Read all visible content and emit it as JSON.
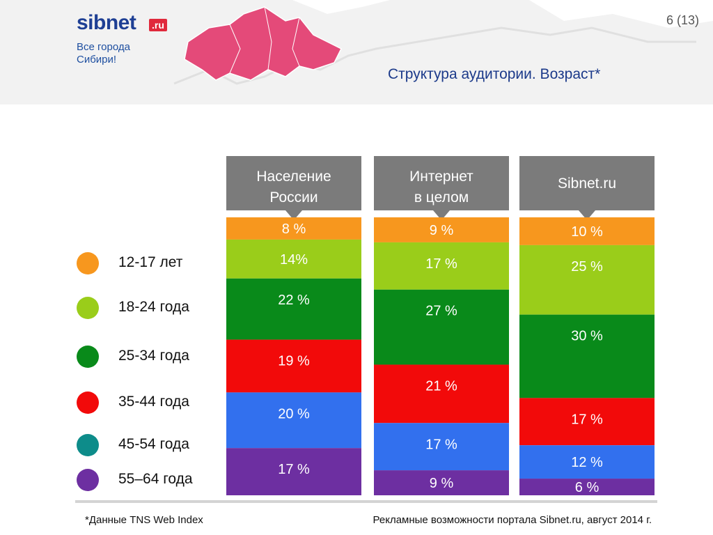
{
  "header": {
    "logo_text": "sibnet",
    "logo_suffix": ".ru",
    "tagline_line1": "Все города",
    "tagline_line2": "Сибири!",
    "page_number": "6 (13)",
    "title": "Структура аудитории. Возраст*"
  },
  "legend": [
    {
      "label": "12-17 лет",
      "color": "#f7971e"
    },
    {
      "label": "18-24  года",
      "color": "#9acd1a"
    },
    {
      "label": "25-34 года",
      "color": "#098a1a"
    },
    {
      "label": "35-44 года",
      "color": "#f20a0a"
    },
    {
      "label": "45-54 года",
      "color": "#0d8c8a"
    },
    {
      "label": "55–64 года",
      "color": "#6d2fa1"
    }
  ],
  "footer": {
    "footnote": "*Данные TNS Web Index",
    "text": "Рекламные возможности портала Sibnet.ru, август 2014 г."
  },
  "chart_data": {
    "type": "bar",
    "stacked": true,
    "categories": [
      "Население России",
      "Интернет в целом",
      "Sibnet.ru"
    ],
    "category_lines": [
      [
        "Население",
        "России"
      ],
      [
        "Интернет",
        "в целом"
      ],
      [
        "Sibnet.ru"
      ]
    ],
    "series": [
      {
        "name": "12-17 лет",
        "color": "#f7971e",
        "values": [
          8,
          9,
          10
        ],
        "labels": [
          "8 %",
          "9 %",
          "10 %"
        ]
      },
      {
        "name": "18-24  года",
        "color": "#9acd1a",
        "values": [
          14,
          17,
          25
        ],
        "labels": [
          "14%",
          "17 %",
          "25 %"
        ]
      },
      {
        "name": "25-34 года",
        "color": "#098a1a",
        "values": [
          22,
          27,
          30
        ],
        "labels": [
          "22 %",
          "27 %",
          "30 %"
        ]
      },
      {
        "name": "35-44 года",
        "color": "#f20a0a",
        "values": [
          19,
          21,
          17
        ],
        "labels": [
          "19 %",
          "21 %",
          "17 %"
        ]
      },
      {
        "name": "45-54 года",
        "color": "#3270ee",
        "values": [
          20,
          17,
          12
        ],
        "labels": [
          "20 %",
          "17 %",
          "12 %"
        ]
      },
      {
        "name": "55–64 года",
        "color": "#6d2fa1",
        "values": [
          17,
          9,
          6
        ],
        "labels": [
          "17 %",
          "9 %",
          "6 %"
        ]
      }
    ]
  }
}
